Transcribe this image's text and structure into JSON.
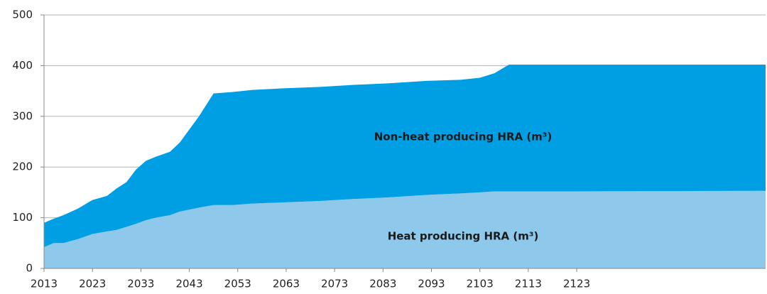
{
  "chart_data": {
    "type": "stacked_area",
    "x": [
      2013,
      2015,
      2017,
      2020,
      2023,
      2026,
      2028,
      2030,
      2032,
      2034,
      2036,
      2039,
      2041,
      2045,
      2048,
      2052,
      2056,
      2062,
      2070,
      2077,
      2084,
      2092,
      2099,
      2103,
      2106,
      2109,
      2121,
      2162
    ],
    "series": [
      {
        "name": "Heat producing HRA (m³)",
        "color": "#8ec8ea",
        "values": [
          42,
          50,
          50,
          58,
          68,
          73,
          76,
          82,
          88,
          95,
          100,
          105,
          112,
          120,
          125,
          125,
          128,
          130,
          133,
          137,
          140,
          145,
          148,
          150,
          152,
          152,
          152,
          153
        ]
      },
      {
        "name": "Non-heat producing HRA (m³)",
        "color": "#009fe3",
        "values": [
          48,
          48,
          55,
          60,
          67,
          70,
          82,
          88,
          107,
          117,
          120,
          125,
          136,
          180,
          220,
          223,
          224,
          225,
          225,
          225,
          225,
          225,
          224,
          226,
          233,
          250,
          250,
          249
        ]
      }
    ],
    "xlim": [
      2013,
      2162
    ],
    "xticks": [
      2013,
      2023,
      2033,
      2043,
      2053,
      2063,
      2073,
      2083,
      2093,
      2103,
      2113,
      2123
    ],
    "ylim": [
      0,
      500
    ],
    "yticks": [
      0,
      100,
      200,
      300,
      400,
      500
    ],
    "grid": true
  }
}
